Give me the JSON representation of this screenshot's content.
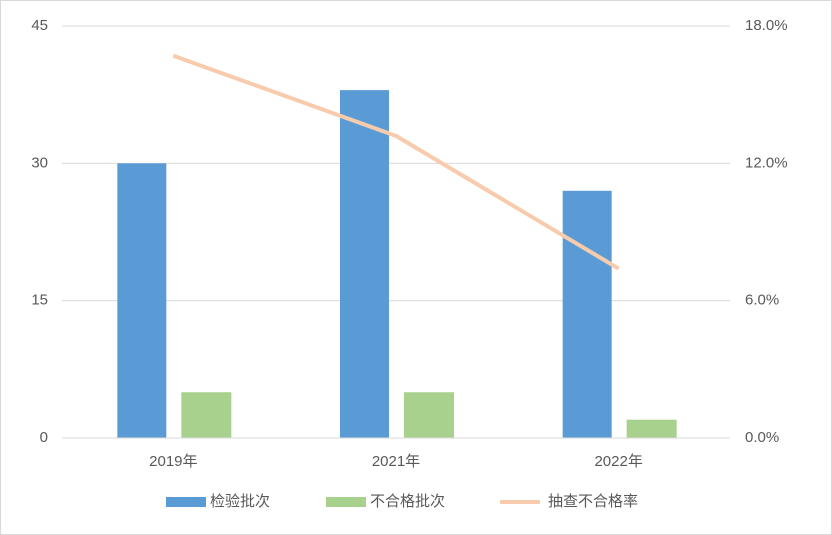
{
  "chart_data": {
    "type": "bar",
    "categories": [
      "2019年",
      "2021年",
      "2022年"
    ],
    "series": [
      {
        "name": "检验批次",
        "color": "#5b9bd5",
        "values": [
          30,
          38,
          27
        ]
      },
      {
        "name": "不合格批次",
        "color": "#a9d18e",
        "values": [
          5,
          5,
          2
        ]
      },
      {
        "name": "抽查不合格率",
        "color": "#f8cbad",
        "type": "line",
        "axis": "y2",
        "values": [
          16.7,
          13.2,
          7.4
        ]
      }
    ],
    "ylim": [
      0,
      45
    ],
    "yticks": [
      0,
      15,
      30,
      45
    ],
    "y2lim": [
      0,
      18
    ],
    "y2ticks": [
      {
        "value": 0,
        "label": "0.0%"
      },
      {
        "value": 6,
        "label": "6.0%"
      },
      {
        "value": 12,
        "label": "12.0%"
      },
      {
        "value": 18,
        "label": "18.0%"
      }
    ],
    "grid": true,
    "legend": "bottom"
  }
}
